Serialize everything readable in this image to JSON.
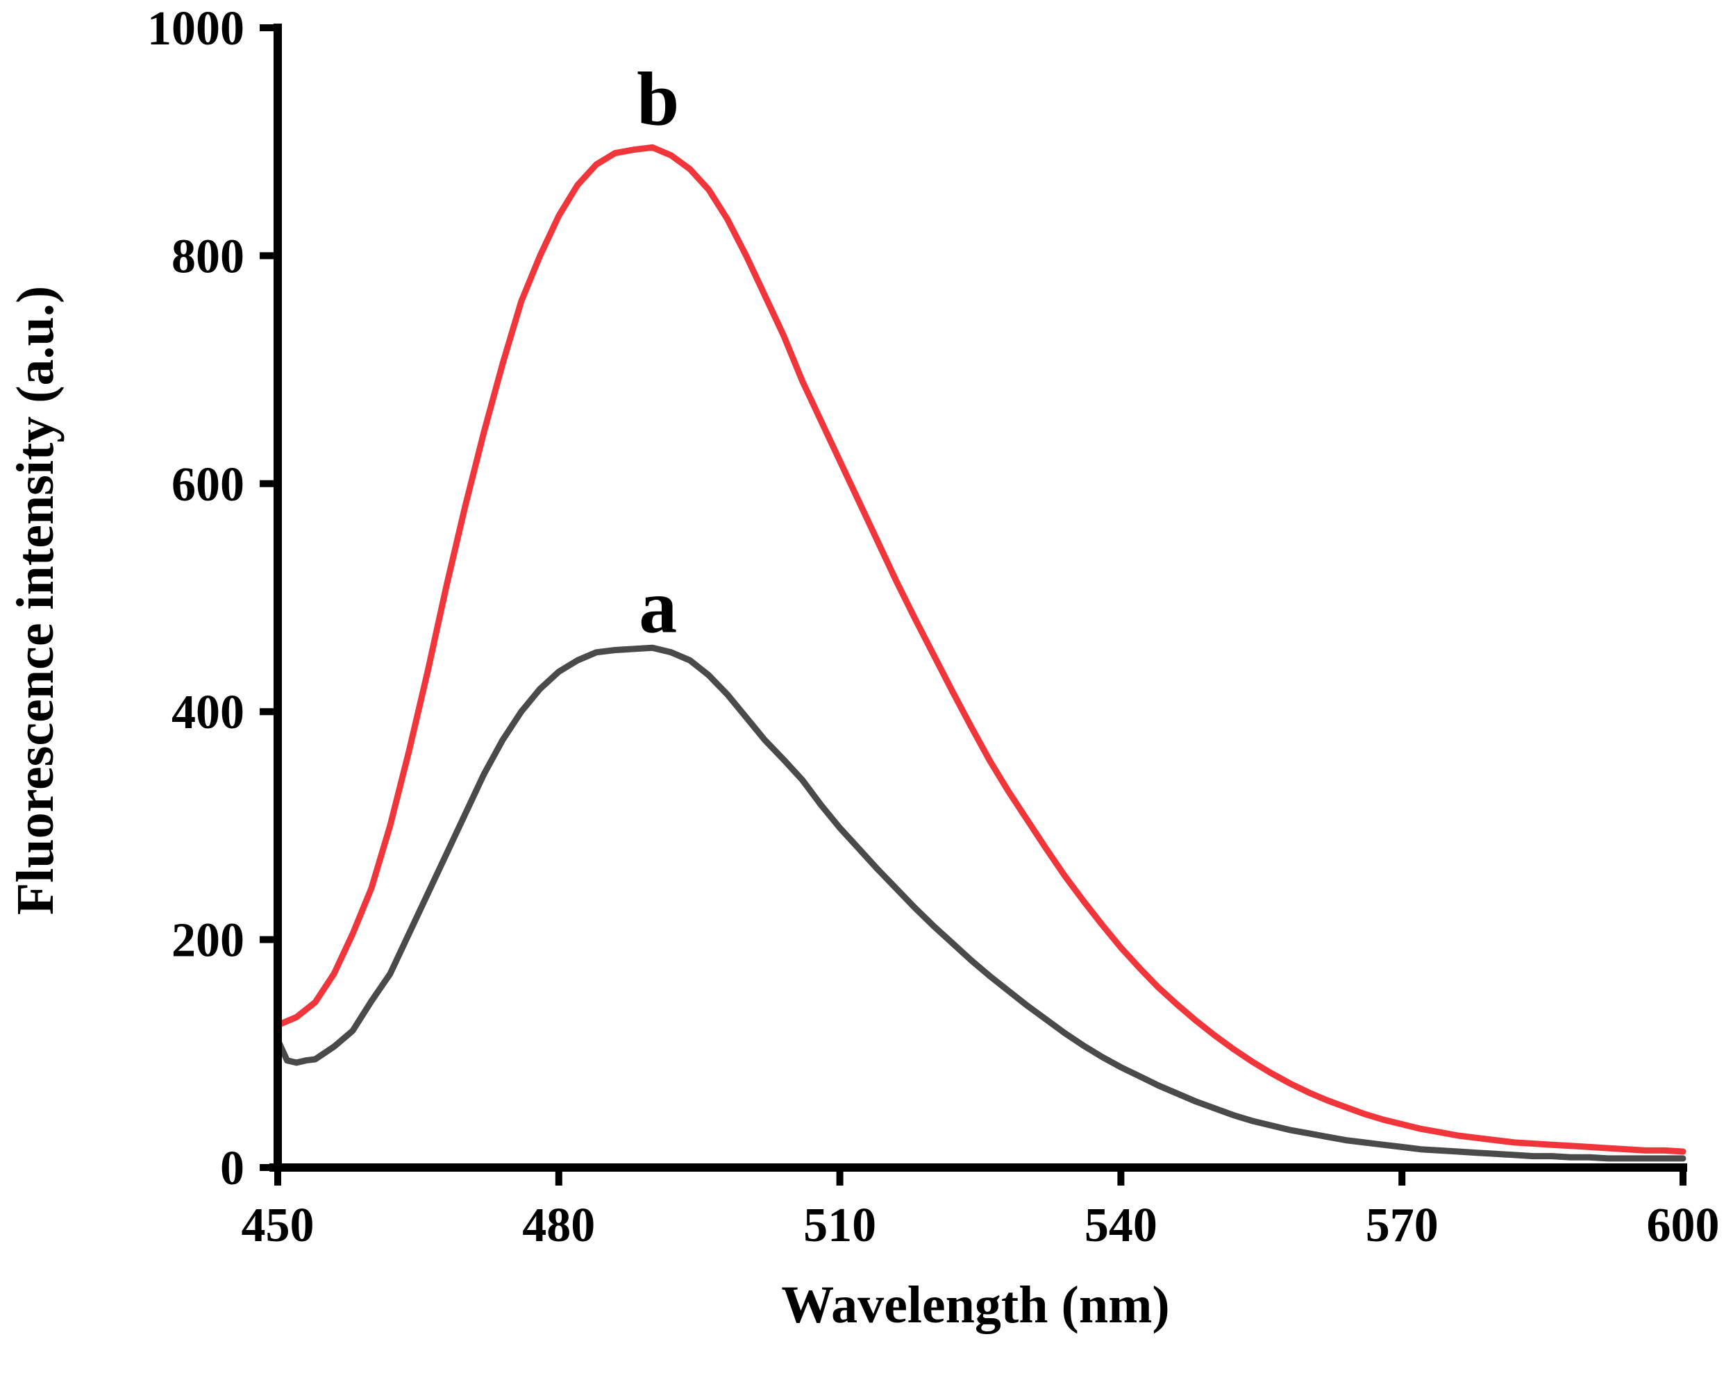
{
  "chart_data": {
    "type": "line",
    "title": "",
    "xlabel": "Wavelength (nm)",
    "ylabel": "Fluorescence intensity (a.u.)",
    "xlim": [
      450,
      600
    ],
    "ylim": [
      0,
      1000
    ],
    "xticks": [
      450,
      480,
      510,
      540,
      570,
      600
    ],
    "yticks": [
      0,
      200,
      400,
      600,
      800,
      1000
    ],
    "xtick_labels": [
      "450",
      "480",
      "510",
      "540",
      "570",
      "600"
    ],
    "ytick_labels": [
      "0",
      "200",
      "400",
      "600",
      "800",
      "1000"
    ],
    "grid": false,
    "series": [
      {
        "name": "a",
        "color": "#4a4a4a",
        "x": [
          450,
          451,
          452,
          453,
          454,
          456,
          458,
          460,
          462,
          464,
          466,
          468,
          470,
          472,
          474,
          476,
          478,
          480,
          482,
          484,
          486,
          488,
          490,
          492,
          494,
          496,
          498,
          500,
          502,
          504,
          506,
          508,
          510,
          512,
          514,
          516,
          518,
          520,
          522,
          524,
          526,
          528,
          530,
          532,
          534,
          536,
          538,
          540,
          542,
          544,
          546,
          548,
          550,
          552,
          554,
          556,
          558,
          560,
          562,
          564,
          566,
          568,
          570,
          572,
          574,
          576,
          578,
          580,
          582,
          584,
          586,
          588,
          590,
          592,
          594,
          596,
          598,
          600
        ],
        "values": [
          112,
          94,
          92,
          94,
          95,
          106,
          120,
          146,
          170,
          205,
          240,
          275,
          310,
          345,
          375,
          400,
          420,
          435,
          445,
          452,
          454,
          455,
          456,
          452,
          445,
          432,
          415,
          395,
          375,
          358,
          340,
          318,
          298,
          280,
          262,
          245,
          228,
          212,
          197,
          182,
          168,
          155,
          142,
          130,
          118,
          107,
          97,
          88,
          80,
          72,
          65,
          58,
          52,
          46,
          41,
          37,
          33,
          30,
          27,
          24,
          22,
          20,
          18,
          16,
          15,
          14,
          13,
          12,
          11,
          10,
          10,
          9,
          9,
          8,
          8,
          8,
          8,
          8
        ]
      },
      {
        "name": "b",
        "color": "#f0363a",
        "x": [
          450,
          452,
          454,
          456,
          458,
          460,
          462,
          464,
          466,
          468,
          470,
          472,
          474,
          476,
          478,
          480,
          482,
          484,
          486,
          488,
          490,
          492,
          494,
          496,
          498,
          500,
          502,
          504,
          506,
          508,
          510,
          512,
          514,
          516,
          518,
          520,
          522,
          524,
          526,
          528,
          530,
          532,
          534,
          536,
          538,
          540,
          542,
          544,
          546,
          548,
          550,
          552,
          554,
          556,
          558,
          560,
          562,
          564,
          566,
          568,
          570,
          572,
          574,
          576,
          578,
          580,
          582,
          584,
          586,
          588,
          590,
          592,
          594,
          596,
          598,
          600
        ],
        "values": [
          125,
          132,
          145,
          170,
          205,
          245,
          300,
          365,
          435,
          510,
          580,
          645,
          705,
          760,
          800,
          835,
          862,
          880,
          890,
          893,
          895,
          888,
          876,
          858,
          832,
          800,
          765,
          730,
          690,
          655,
          620,
          585,
          550,
          515,
          482,
          450,
          418,
          387,
          357,
          330,
          305,
          280,
          256,
          234,
          213,
          193,
          175,
          158,
          143,
          129,
          116,
          104,
          93,
          83,
          74,
          66,
          59,
          53,
          47,
          42,
          38,
          34,
          31,
          28,
          26,
          24,
          22,
          21,
          20,
          19,
          18,
          17,
          16,
          15,
          15,
          14
        ]
      }
    ],
    "annotations": [
      {
        "text": "a",
        "series": "a",
        "x": 490,
        "y": 470
      },
      {
        "text": "b",
        "series": "b",
        "x": 490,
        "y": 915
      }
    ]
  }
}
